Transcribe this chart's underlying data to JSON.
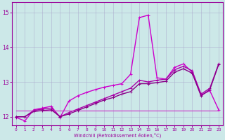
{
  "bg_color": "#cce8e8",
  "grid_color": "#aaaacc",
  "xlabel": "Windchill (Refroidissement éolien,°C)",
  "xlim": [
    -0.5,
    23.5
  ],
  "ylim": [
    11.75,
    15.3
  ],
  "yticks": [
    12,
    13,
    14,
    15
  ],
  "xticks": [
    0,
    1,
    2,
    3,
    4,
    5,
    6,
    7,
    8,
    9,
    10,
    11,
    12,
    13,
    14,
    15,
    16,
    17,
    18,
    19,
    20,
    21,
    22,
    23
  ],
  "series": [
    {
      "x": [
        0,
        1,
        2,
        3,
        4,
        5,
        6,
        7,
        8,
        9,
        10,
        11,
        12,
        13,
        14,
        15,
        16,
        17,
        18,
        19,
        20,
        21,
        22,
        23
      ],
      "y": [
        11.98,
        11.88,
        12.2,
        12.25,
        12.3,
        11.98,
        12.45,
        12.6,
        12.7,
        12.78,
        12.85,
        12.9,
        12.95,
        13.22,
        14.85,
        14.92,
        13.12,
        13.08,
        13.42,
        13.52,
        13.28,
        12.62,
        12.75,
        12.2
      ],
      "color": "#cc00cc",
      "marker": "+",
      "lw": 1.0,
      "ms": 3.5
    },
    {
      "x": [
        0,
        1,
        2,
        3,
        4,
        5,
        6,
        7,
        8,
        9,
        10,
        11,
        12,
        13,
        14,
        15,
        16,
        17,
        18,
        19,
        20,
        21,
        22,
        23
      ],
      "y": [
        12.0,
        12.0,
        12.18,
        12.22,
        12.25,
        12.0,
        12.12,
        12.22,
        12.32,
        12.42,
        12.52,
        12.62,
        12.72,
        12.82,
        13.05,
        13.0,
        13.05,
        13.08,
        13.35,
        13.45,
        13.32,
        12.65,
        12.82,
        13.52
      ],
      "color": "#aa00aa",
      "marker": "+",
      "lw": 1.0,
      "ms": 3.0
    },
    {
      "x": [
        0,
        23
      ],
      "y": [
        12.18,
        12.18
      ],
      "color": "#cc44cc",
      "marker": null,
      "lw": 0.9,
      "ms": 0
    },
    {
      "x": [
        0,
        1,
        2,
        3,
        4,
        5,
        6,
        7,
        8,
        9,
        10,
        11,
        12,
        13,
        14,
        15,
        16,
        17,
        18,
        19,
        20,
        21,
        22,
        23
      ],
      "y": [
        12.0,
        12.0,
        12.15,
        12.18,
        12.2,
        12.0,
        12.08,
        12.18,
        12.28,
        12.38,
        12.48,
        12.55,
        12.65,
        12.72,
        12.95,
        12.95,
        12.98,
        13.02,
        13.28,
        13.38,
        13.25,
        12.6,
        12.78,
        13.5
      ],
      "color": "#880088",
      "marker": "+",
      "lw": 1.0,
      "ms": 3.0
    }
  ]
}
